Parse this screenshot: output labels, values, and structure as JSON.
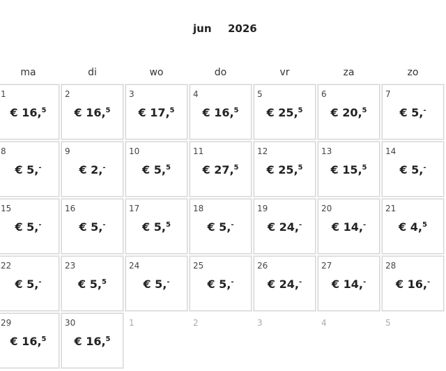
{
  "header": {
    "month": "jun",
    "year": "2026"
  },
  "weekdays": [
    "ma",
    "di",
    "wo",
    "do",
    "vr",
    "za",
    "zo"
  ],
  "weeks": [
    [
      {
        "day": "1",
        "price": {
          "main": "€ 16,",
          "sup": "5"
        }
      },
      {
        "day": "2",
        "price": {
          "main": "€ 16,",
          "sup": "5"
        }
      },
      {
        "day": "3",
        "price": {
          "main": "€ 17,",
          "sup": "5"
        }
      },
      {
        "day": "4",
        "price": {
          "main": "€ 16,",
          "sup": "5"
        }
      },
      {
        "day": "5",
        "price": {
          "main": "€ 25,",
          "sup": "5"
        }
      },
      {
        "day": "6",
        "price": {
          "main": "€ 20,",
          "sup": "5"
        }
      },
      {
        "day": "7",
        "price": {
          "main": "€ 5,",
          "sup": "-"
        }
      }
    ],
    [
      {
        "day": "8",
        "price": {
          "main": "€ 5,",
          "sup": "-"
        }
      },
      {
        "day": "9",
        "price": {
          "main": "€ 2,",
          "sup": "-"
        }
      },
      {
        "day": "10",
        "price": {
          "main": "€ 5,",
          "sup": "5"
        }
      },
      {
        "day": "11",
        "price": {
          "main": "€ 27,",
          "sup": "5"
        }
      },
      {
        "day": "12",
        "price": {
          "main": "€ 25,",
          "sup": "5"
        }
      },
      {
        "day": "13",
        "price": {
          "main": "€ 15,",
          "sup": "5"
        }
      },
      {
        "day": "14",
        "price": {
          "main": "€ 5,",
          "sup": "-"
        }
      }
    ],
    [
      {
        "day": "15",
        "price": {
          "main": "€ 5,",
          "sup": "-"
        }
      },
      {
        "day": "16",
        "price": {
          "main": "€ 5,",
          "sup": "-"
        }
      },
      {
        "day": "17",
        "price": {
          "main": "€ 5,",
          "sup": "5"
        }
      },
      {
        "day": "18",
        "price": {
          "main": "€ 5,",
          "sup": "-"
        }
      },
      {
        "day": "19",
        "price": {
          "main": "€ 24,",
          "sup": "-"
        }
      },
      {
        "day": "20",
        "price": {
          "main": "€ 14,",
          "sup": "-"
        }
      },
      {
        "day": "21",
        "price": {
          "main": "€ 4,",
          "sup": "5"
        }
      }
    ],
    [
      {
        "day": "22",
        "price": {
          "main": "€ 5,",
          "sup": "-"
        }
      },
      {
        "day": "23",
        "price": {
          "main": "€ 5,",
          "sup": "5"
        }
      },
      {
        "day": "24",
        "price": {
          "main": "€ 5,",
          "sup": "-"
        }
      },
      {
        "day": "25",
        "price": {
          "main": "€ 5,",
          "sup": "-"
        }
      },
      {
        "day": "26",
        "price": {
          "main": "€ 24,",
          "sup": "-"
        }
      },
      {
        "day": "27",
        "price": {
          "main": "€ 14,",
          "sup": "-"
        }
      },
      {
        "day": "28",
        "price": {
          "main": "€ 16,",
          "sup": "-"
        }
      }
    ],
    [
      {
        "day": "29",
        "price": {
          "main": "€ 16,",
          "sup": "5"
        }
      },
      {
        "day": "30",
        "price": {
          "main": "€ 16,",
          "sup": "5"
        }
      },
      {
        "day": "1"
      },
      {
        "day": "2"
      },
      {
        "day": "3"
      },
      {
        "day": "4"
      },
      {
        "day": "5"
      }
    ]
  ]
}
